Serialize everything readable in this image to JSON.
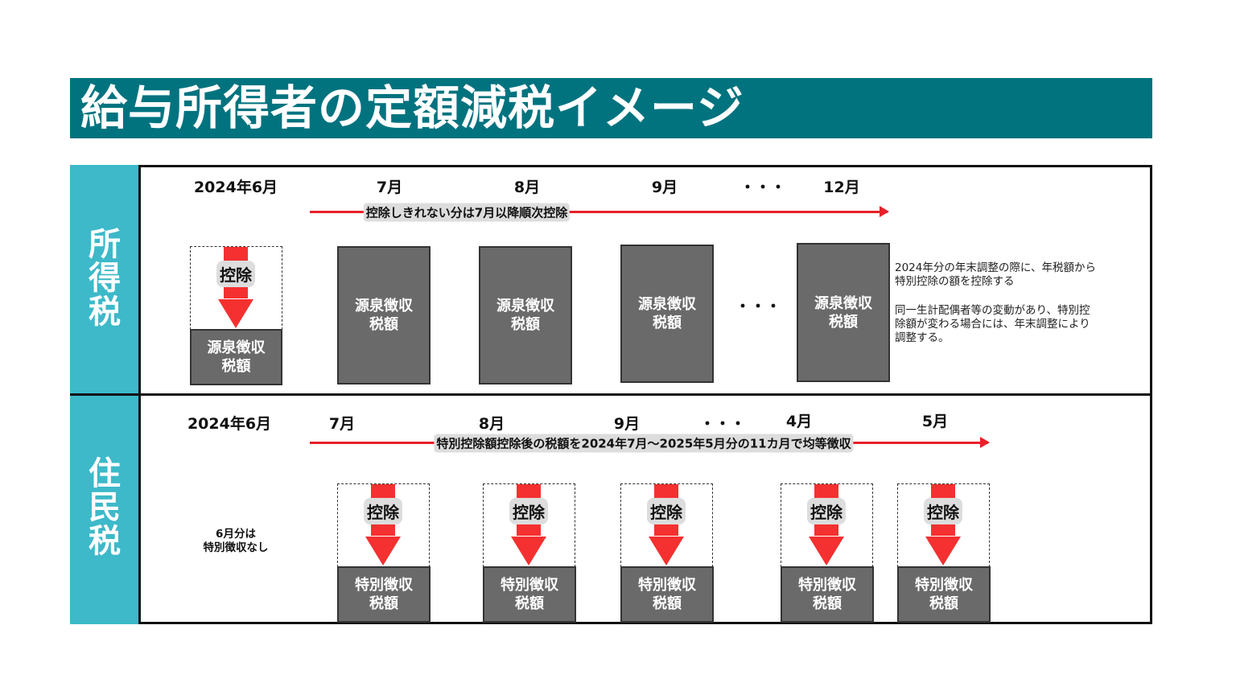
{
  "title": "給与所得者の定額減税イメージ",
  "colors": {
    "title_bg": "#00737f",
    "side_bg": "#3db9c9",
    "arrow": "#e8202a",
    "box": "#6a6a6a"
  },
  "income_tax": {
    "side_label": "所得税",
    "months": [
      "2024年6月",
      "7月",
      "8月",
      "9月",
      "・・・",
      "12月"
    ],
    "arrow_label": "控除しきれない分は7月以降順次控除",
    "first_box": {
      "deduction": "控除",
      "tax": "源泉徴収\n税額"
    },
    "boxes": [
      "源泉徴収\n税額",
      "源泉徴収\n税額",
      "源泉徴収\n税額",
      "源泉徴収\n税額"
    ],
    "ellipsis": "・・・",
    "notes": [
      "2024年分の年末調整の際に、年税額から\n特別控除の額を控除する",
      "同一生計配偶者等の変動があり、特別控\n除額が変わる場合には、年末調整により\n調整する。"
    ]
  },
  "resident_tax": {
    "side_label": "住民税",
    "months": [
      "2024年6月",
      "7月",
      "8月",
      "9月",
      "・・・",
      "4月",
      "5月"
    ],
    "arrow_label": "特別控除額控除後の税額を2024年7月～2025年5月分の11カ月で均等徴収",
    "june_note": "6月分は\n特別徴収なし",
    "boxes": [
      {
        "deduction": "控除",
        "tax": "特別徴収\n税額"
      },
      {
        "deduction": "控除",
        "tax": "特別徴収\n税額"
      },
      {
        "deduction": "控除",
        "tax": "特別徴収\n税額"
      },
      {
        "deduction": "控除",
        "tax": "特別徴収\n税額"
      },
      {
        "deduction": "控除",
        "tax": "特別徴収\n税額"
      }
    ]
  }
}
